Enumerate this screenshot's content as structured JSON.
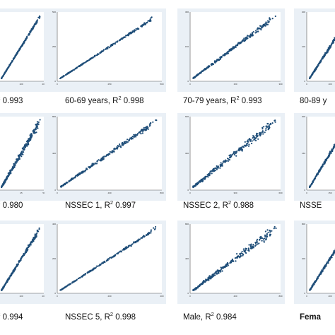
{
  "figure": {
    "chart_data": [
      {
        "type": "scatter",
        "caption_pre": "",
        "caption_value": "0.993",
        "r2": 0.993,
        "spread": "low",
        "xlim": [
          0,
          200
        ],
        "ylim": [
          0,
          200
        ],
        "xlabel": "",
        "ylabel": ""
      },
      {
        "type": "scatter",
        "caption_pre": "60-69 years, R",
        "caption_value": "0.998",
        "r2": 0.998,
        "spread": "low",
        "xlim": [
          0,
          500
        ],
        "ylim": [
          0,
          500
        ],
        "xlabel": "",
        "ylabel": ""
      },
      {
        "type": "scatter",
        "caption_pre": "70-79 years, R",
        "caption_value": "0.993",
        "r2": 0.993,
        "spread": "mid",
        "xlim": [
          0,
          300
        ],
        "ylim": [
          0,
          300
        ],
        "xlabel": "",
        "ylabel": ""
      },
      {
        "type": "scatter",
        "caption_pre": "80-89 y",
        "caption_value": "",
        "r2": null,
        "spread": "mid",
        "xlim": [
          0,
          200
        ],
        "ylim": [
          0,
          200
        ],
        "xlabel": "",
        "ylabel": ""
      },
      {
        "type": "scatter",
        "caption_pre": "",
        "caption_value": "0.980",
        "r2": 0.98,
        "spread": "high",
        "xlim": [
          0,
          50
        ],
        "ylim": [
          0,
          50
        ],
        "xlabel": "",
        "ylabel": ""
      },
      {
        "type": "scatter",
        "caption_pre": "NSSEC 1, R",
        "caption_value": "0.997",
        "r2": 0.997,
        "spread": "mid",
        "xlim": [
          0,
          800
        ],
        "ylim": [
          0,
          800
        ],
        "xlabel": "",
        "ylabel": ""
      },
      {
        "type": "scatter",
        "caption_pre": "NSSEC 2, R",
        "caption_value": "0.988",
        "r2": 0.988,
        "spread": "high",
        "xlim": [
          0,
          600
        ],
        "ylim": [
          0,
          600
        ],
        "xlabel": "",
        "ylabel": ""
      },
      {
        "type": "scatter",
        "caption_pre": "NSSE",
        "caption_value": "",
        "r2": null,
        "spread": "mid",
        "xlim": [
          0,
          300
        ],
        "ylim": [
          0,
          300
        ],
        "xlabel": "",
        "ylabel": ""
      },
      {
        "type": "scatter",
        "caption_pre": "",
        "caption_value": "0.994",
        "r2": 0.994,
        "spread": "mid",
        "xlim": [
          0,
          200
        ],
        "ylim": [
          0,
          200
        ],
        "xlabel": "",
        "ylabel": ""
      },
      {
        "type": "scatter",
        "caption_pre": "NSSEC 5, R",
        "caption_value": "0.998",
        "r2": 0.998,
        "spread": "low",
        "xlim": [
          0,
          400
        ],
        "ylim": [
          0,
          400
        ],
        "xlabel": "",
        "ylabel": ""
      },
      {
        "type": "scatter",
        "caption_pre": "Male, R",
        "caption_value": "0.984",
        "r2": 0.984,
        "spread": "high",
        "xlim": [
          0,
          800
        ],
        "ylim": [
          0,
          800
        ],
        "xlabel": "",
        "ylabel": ""
      },
      {
        "type": "scatter",
        "caption_pre": "Fema",
        "caption_value": "",
        "r2": null,
        "spread": "mid",
        "xlim": [
          0,
          800
        ],
        "ylim": [
          0,
          800
        ],
        "xlabel": "",
        "ylabel": ""
      }
    ]
  },
  "colors": {
    "point": "#1f4e79",
    "panel_bg": "#eaf0f6"
  }
}
